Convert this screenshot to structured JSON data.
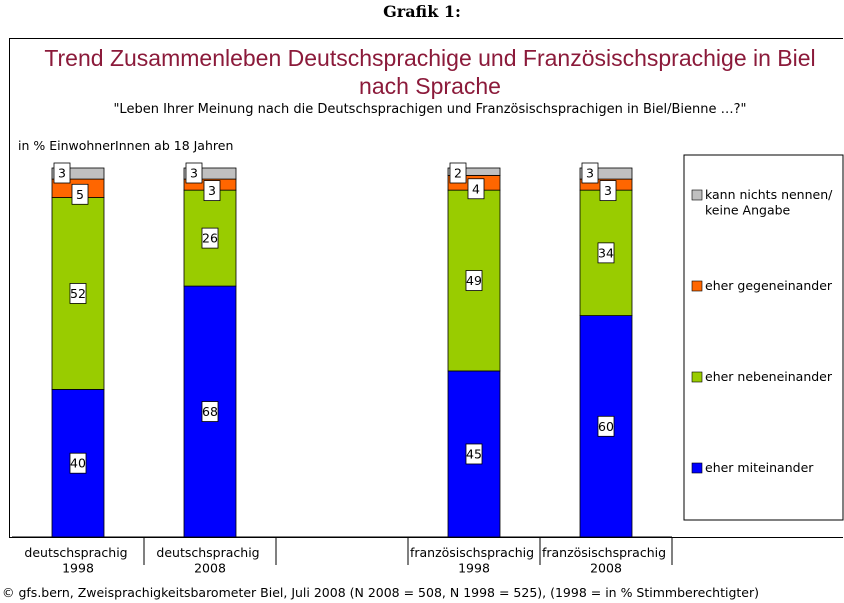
{
  "chart_data": {
    "type": "stacked_bar",
    "header": "Grafik 1:",
    "title": "Trend Zusammenleben Deutschsprachige und Französischsprachige in Biel nach Sprache",
    "subtitle": "\"Leben Ihrer Meinung nach die Deutschsprachigen und Französischsprachigen in Biel/Bienne …?\"",
    "y_label": "in % EinwohnerInnen ab 18 Jahren",
    "source": "© gfs.bern, Zweisprachigkeitsbarometer Biel, Juli 2008 (N 2008 = 508, N 1998 = 525), (1998 = in % Stimmberechtigter)",
    "categories": [
      "deutschsprachig 1998",
      "deutschsprachig 2008",
      null,
      "französischsprachig 1998",
      "französischsprachig 2008"
    ],
    "ylim": [
      0,
      100
    ],
    "series": [
      {
        "name": "eher miteinander",
        "color": "#0000ff",
        "values": [
          40,
          68,
          null,
          45,
          60
        ]
      },
      {
        "name": "eher nebeneinander",
        "color": "#99cc00",
        "values": [
          52,
          26,
          null,
          49,
          34
        ]
      },
      {
        "name": "eher gegeneinander",
        "color": "#ff6600",
        "values": [
          5,
          3,
          null,
          4,
          3
        ]
      },
      {
        "name": "kann nichts nennen/ keine Angabe",
        "color": "#c0c0c0",
        "values": [
          3,
          3,
          null,
          2,
          3
        ]
      }
    ]
  }
}
